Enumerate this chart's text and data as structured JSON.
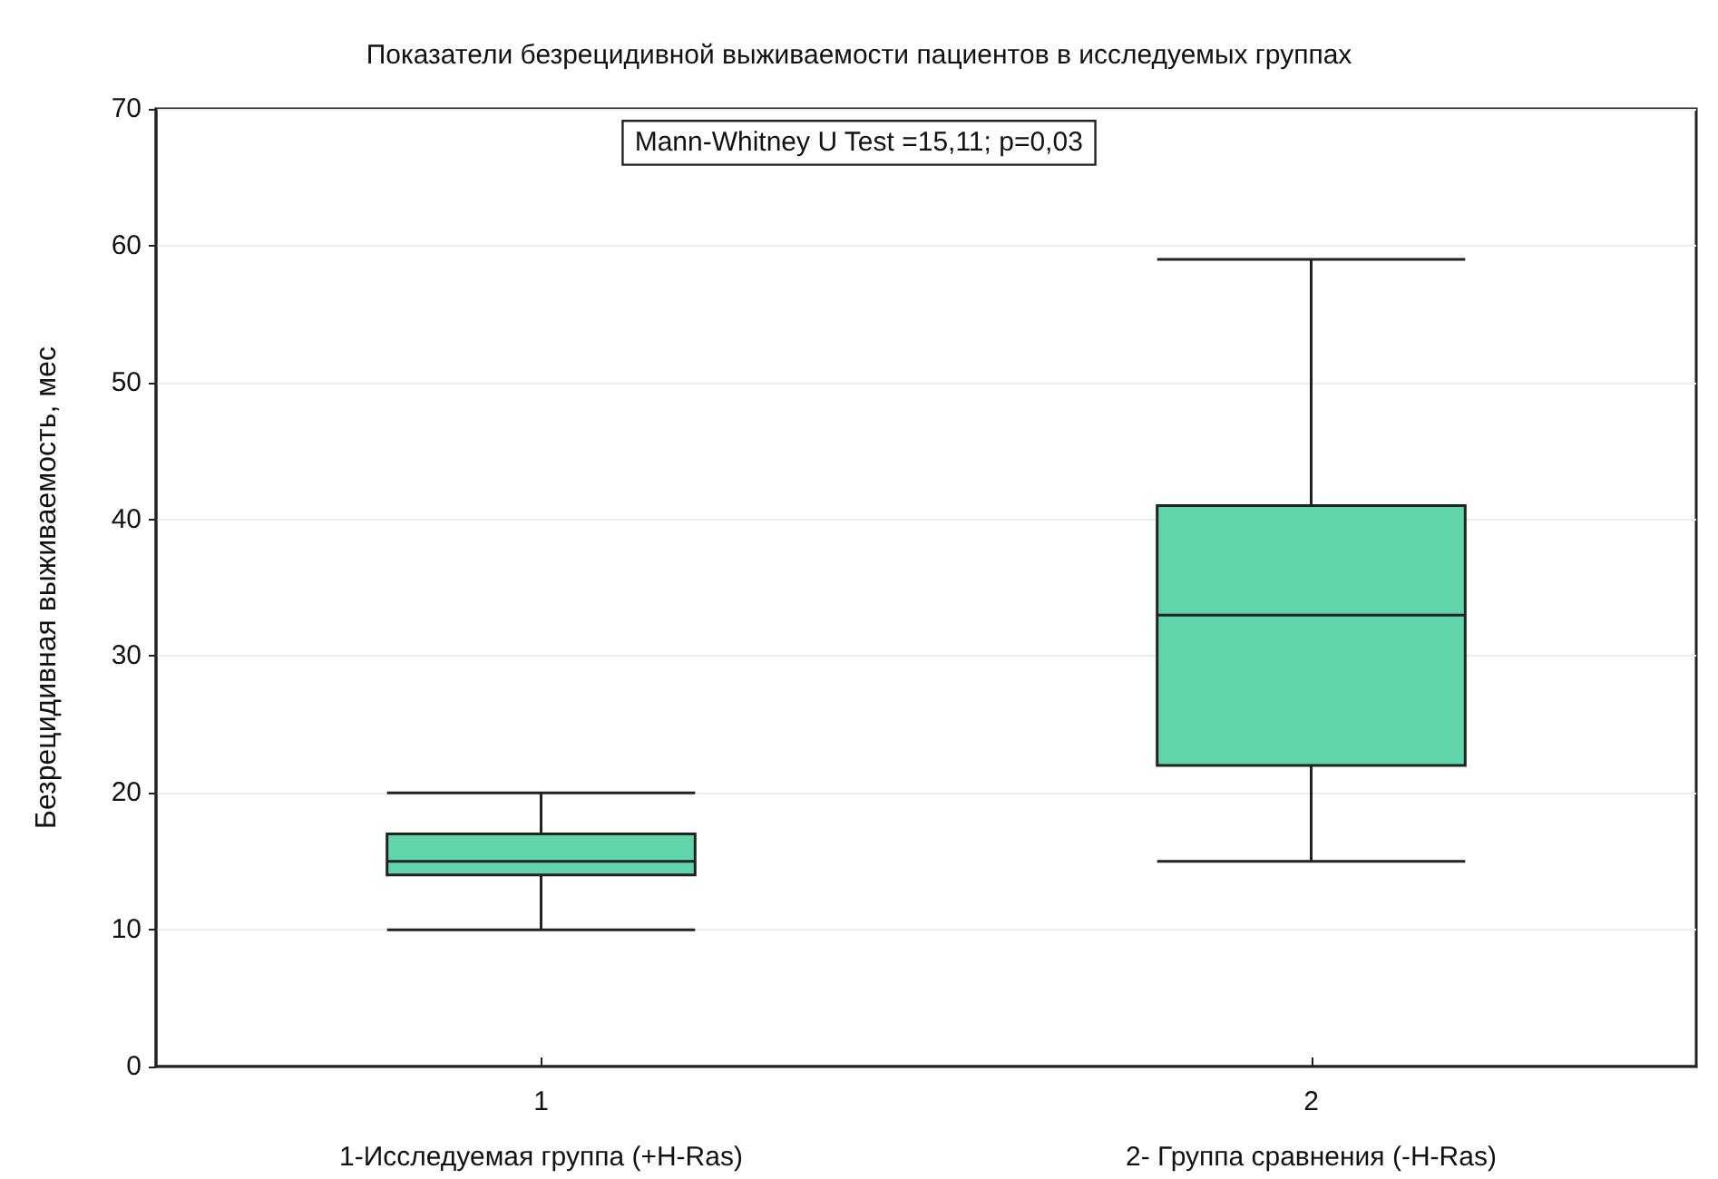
{
  "chart_data": {
    "type": "box",
    "title": "Показатели безрецидивной выживаемости пациентов в исследуемых группах",
    "ylabel": "Безрецидивная выживаемость, мес",
    "categories": [
      "1",
      "2"
    ],
    "series": [
      {
        "color": "#60d5aa",
        "boxes": [
          {
            "low": 10,
            "q1": 14,
            "median": 15,
            "q3": 17,
            "high": 20
          },
          {
            "low": 15,
            "q1": 22,
            "median": 33,
            "q3": 41,
            "high": 59
          }
        ]
      }
    ],
    "ylim": [
      0,
      70
    ],
    "yticks": [
      0,
      10,
      20,
      30,
      40,
      50,
      60,
      70
    ],
    "grid": "y",
    "annotations": [
      "Mann-Whitney U Test =15,11; p=0,03",
      "1-Исследуемая группа (+H-Ras)",
      "2- Группа сравнения (-H-Ras)"
    ]
  }
}
